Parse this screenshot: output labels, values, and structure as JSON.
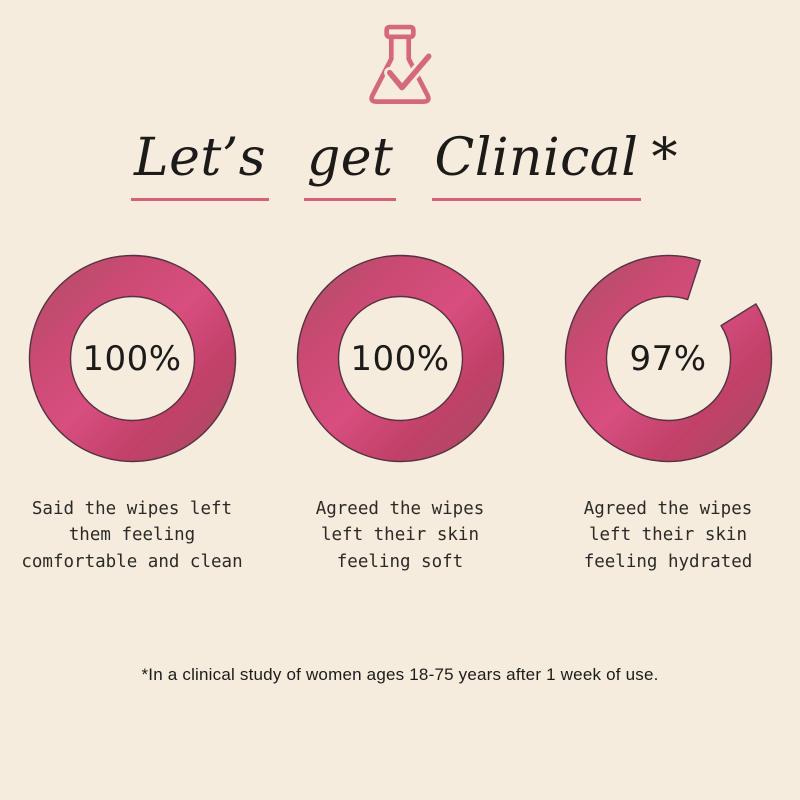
{
  "colors": {
    "bg": "#f6ecdd",
    "ink": "#1c1b1a",
    "caption_ink": "#2c2a27",
    "underline_pink": "#d2617b",
    "icon_pink": "#d4697e",
    "ring_outline": "#533340"
  },
  "header": {
    "icon": "flask-check-icon"
  },
  "title": {
    "words": [
      "Let’s",
      "get",
      "Clinical"
    ],
    "suffix": "*"
  },
  "chart_data": {
    "type": "pie",
    "subtype": "donut-row",
    "title": "Let’s get Clinical*",
    "unit": "%",
    "legend_position": "caption-below-each-donut",
    "ring_gradient_stops": [
      [
        "0",
        "#ab4e66"
      ],
      [
        "0.28",
        "#cb4a73"
      ],
      [
        "0.5",
        "#d84e7f"
      ],
      [
        "0.72",
        "#c14168"
      ],
      [
        "1",
        "#a84d64"
      ]
    ],
    "series": [
      {
        "label": "Said the wipes left them feeling comfortable and clean",
        "label_lines": "Said the wipes left\nthem feeling\ncomfortable and clean",
        "value": 100,
        "display": "100%",
        "ring_gap_deg": 0
      },
      {
        "label": "Agreed the wipes left their skin feeling soft",
        "label_lines": "Agreed the wipes\nleft their skin\nfeeling soft",
        "value": 100,
        "display": "100%",
        "ring_gap_deg": 0
      },
      {
        "label": "Agreed the wipes left their skin feeling hydrated",
        "label_lines": "Agreed the wipes\nleft their skin\nfeeling hydrated",
        "value": 97,
        "display": "97%",
        "ring_gap_deg": 40,
        "ring_gap_center_deg": 38
      }
    ]
  },
  "footnote": "*In a clinical study of women ages 18-75 years after 1 week of use."
}
